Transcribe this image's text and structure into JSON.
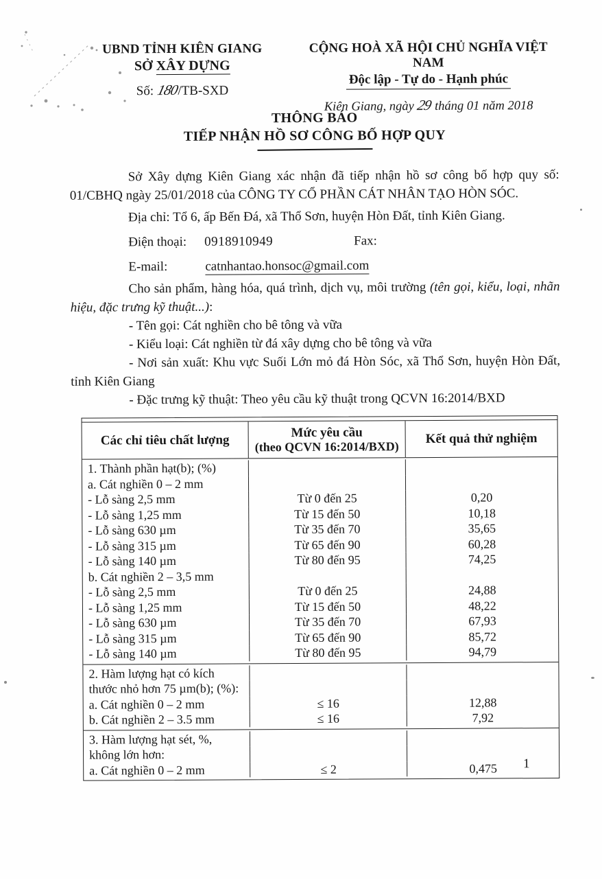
{
  "header": {
    "left": {
      "org_parent": "UBND TỈNH KIÊN GIANG",
      "org_prefix": "SỞ ",
      "org_underlined": "XÂY DỰNG",
      "doc_no_label": "Số: ",
      "doc_no_handwritten": "180",
      "doc_no_suffix": "/TB-SXD"
    },
    "right": {
      "national_title": "CỘNG HOÀ XÃ HỘI CHỦ NGHĨA VIỆT NAM",
      "motto": "Độc lập - Tự do - Hạnh phúc",
      "date_prefix": "Kiên Giang, ngày ",
      "date_day_handwritten": "29",
      "date_suffix": " tháng 01 năm 2018"
    }
  },
  "title": {
    "line1": "THÔNG BÁO",
    "line2": "TIẾP NHẬN HỒ SƠ CÔNG BỐ HỢP QUY"
  },
  "body": {
    "p1": "Sở Xây dựng Kiên Giang xác nhận đã tiếp nhận hồ sơ công bố hợp quy số: 01/CBHQ  ngày 25/01/2018 của CÔNG TY CỔ PHẦN CÁT NHÂN TẠO HÒN SÓC.",
    "address": "Địa chỉ: Tổ 6, ấp Bến Đá, xã Thổ Sơn, huyện Hòn Đất, tỉnh Kiên Giang.",
    "phone_label": "Điện thoại:",
    "phone_value": "0918910949",
    "fax_label": "Fax:",
    "email_label": "E-mail:",
    "email_value": "catnhantao.honsoc@gmail.com",
    "product_intro": "Cho sản phẩm, hàng hóa, quá trình, dịch vụ, môi trường ",
    "product_intro_italic": "(tên gọi, kiểu, loại, nhãn hiệu, đặc trưng kỹ thuật...)",
    "product_intro_colon": ":",
    "bullets": [
      "- Tên gọi: Cát nghiền cho bê tông và vữa",
      "- Kiểu loại: Cát nghiền từ đá xây dựng cho bê tông và vữa",
      "- Nơi sản xuất: Khu vực Suối Lớn mỏ đá Hòn Sóc, xã Thổ Sơn, huyện Hòn Đất, tỉnh Kiên Giang",
      "- Đặc trưng kỹ thuật: Theo yêu cầu kỹ thuật trong QCVN 16:2014/BXD"
    ]
  },
  "table": {
    "header": {
      "col1": "Các chỉ tiêu chất lượng",
      "col2_line1": "Mức yêu cầu",
      "col2_line2": "(theo QCVN 16:2014/BXD)",
      "col3": "Kết quả thử nghiệm"
    },
    "groups": [
      {
        "rows": [
          [
            "1. Thành phần hạt(b); (%)",
            "",
            ""
          ],
          [
            "a. Cát nghiền 0 – 2 mm",
            "",
            ""
          ],
          [
            "- Lỗ sàng 2,5 mm",
            "Từ 0 đến 25",
            "0,20"
          ],
          [
            "- Lỗ sàng 1,25 mm",
            "Từ 15 đến 50",
            "10,18"
          ],
          [
            "- Lỗ sàng 630 µm",
            "Từ 35 đến 70",
            "35,65"
          ],
          [
            "- Lỗ sàng 315 µm",
            "Từ 65 đến 90",
            "60,28"
          ],
          [
            "- Lỗ sàng 140 µm",
            "Từ 80 đến 95",
            "74,25"
          ],
          [
            "b. Cát nghiền 2 – 3,5 mm",
            "",
            ""
          ],
          [
            "- Lỗ sàng 2,5 mm",
            "Từ 0 đến 25",
            "24,88"
          ],
          [
            "- Lỗ sàng 1,25 mm",
            "Từ 15 đến 50",
            "48,22"
          ],
          [
            "- Lỗ sàng 630 µm",
            "Từ 35 đến 70",
            "67,93"
          ],
          [
            "- Lỗ sàng 315 µm",
            "Từ 65 đến 90",
            "85,72"
          ],
          [
            "- Lỗ sàng 140 µm",
            "Từ 80 đến 95",
            "94,79"
          ]
        ]
      },
      {
        "rows": [
          [
            "2. Hàm lượng hạt có kích",
            "",
            ""
          ],
          [
            "thước nhỏ hơn 75 µm(b); (%):",
            "",
            ""
          ],
          [
            "a. Cát nghiền 0 – 2 mm",
            "≤ 16",
            "12,88"
          ],
          [
            "b. Cát nghiền 2 – 3.5 mm",
            "≤ 16",
            "7,92"
          ]
        ]
      },
      {
        "rows": [
          [
            "3. Hàm lượng hạt sét, %,",
            "",
            ""
          ],
          [
            "không lớn hơn:",
            "",
            ""
          ],
          [
            "a. Cát nghiền 0 – 2 mm",
            "≤ 2",
            "0,475"
          ]
        ]
      }
    ]
  },
  "page": {
    "number": "1"
  }
}
